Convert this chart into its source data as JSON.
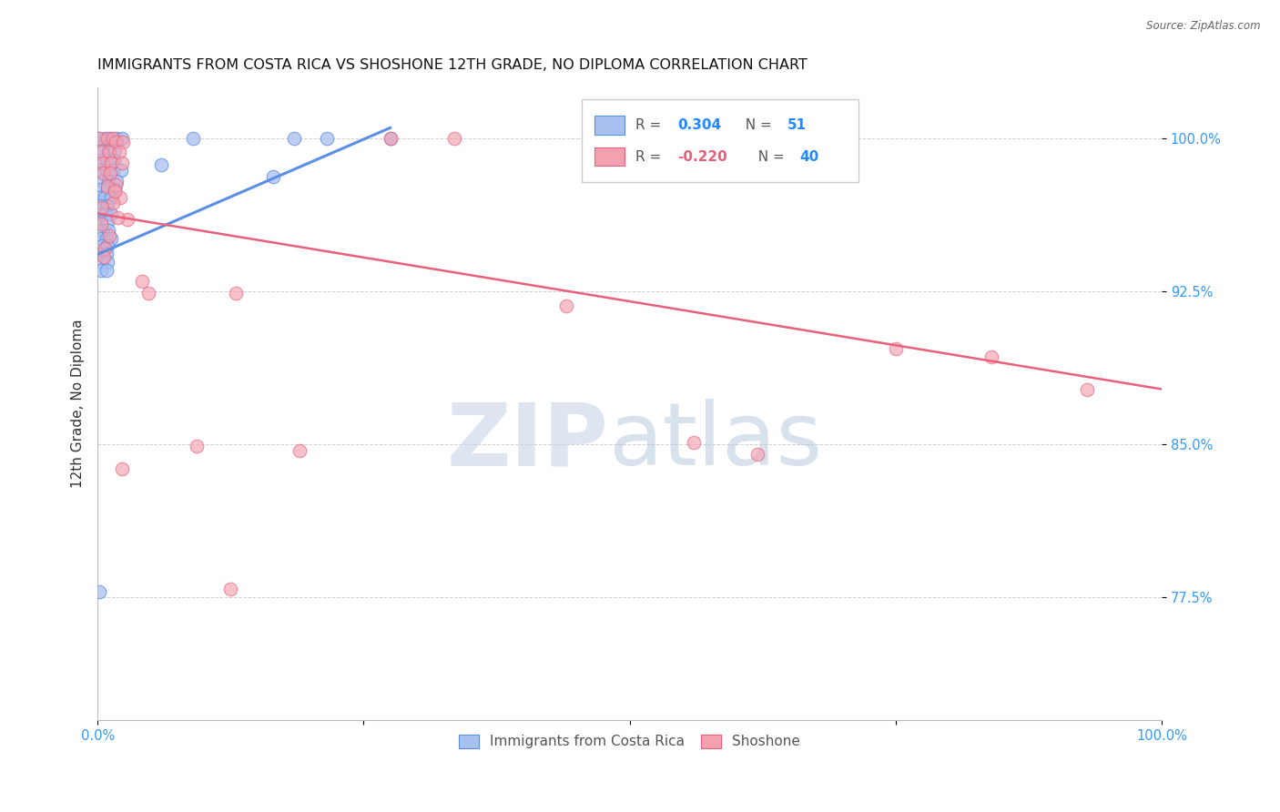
{
  "title": "IMMIGRANTS FROM COSTA RICA VS SHOSHONE 12TH GRADE, NO DIPLOMA CORRELATION CHART",
  "source": "Source: ZipAtlas.com",
  "ylabel": "12th Grade, No Diploma",
  "xlim": [
    0.0,
    1.0
  ],
  "ylim": [
    0.715,
    1.025
  ],
  "yticks": [
    0.775,
    0.85,
    0.925,
    1.0
  ],
  "blue_scatter": [
    [
      0.001,
      1.0
    ],
    [
      0.007,
      1.0
    ],
    [
      0.012,
      1.0
    ],
    [
      0.018,
      1.0
    ],
    [
      0.023,
      1.0
    ],
    [
      0.004,
      0.994
    ],
    [
      0.01,
      0.994
    ],
    [
      0.016,
      0.994
    ],
    [
      0.003,
      0.989
    ],
    [
      0.009,
      0.989
    ],
    [
      0.015,
      0.989
    ],
    [
      0.002,
      0.984
    ],
    [
      0.008,
      0.984
    ],
    [
      0.014,
      0.984
    ],
    [
      0.022,
      0.984
    ],
    [
      0.004,
      0.979
    ],
    [
      0.01,
      0.979
    ],
    [
      0.018,
      0.979
    ],
    [
      0.003,
      0.975
    ],
    [
      0.009,
      0.975
    ],
    [
      0.016,
      0.975
    ],
    [
      0.002,
      0.971
    ],
    [
      0.007,
      0.971
    ],
    [
      0.013,
      0.971
    ],
    [
      0.003,
      0.967
    ],
    [
      0.009,
      0.967
    ],
    [
      0.002,
      0.963
    ],
    [
      0.007,
      0.963
    ],
    [
      0.013,
      0.963
    ],
    [
      0.003,
      0.959
    ],
    [
      0.009,
      0.959
    ],
    [
      0.004,
      0.955
    ],
    [
      0.01,
      0.955
    ],
    [
      0.003,
      0.951
    ],
    [
      0.008,
      0.951
    ],
    [
      0.013,
      0.951
    ],
    [
      0.004,
      0.947
    ],
    [
      0.009,
      0.947
    ],
    [
      0.003,
      0.943
    ],
    [
      0.008,
      0.943
    ],
    [
      0.004,
      0.939
    ],
    [
      0.009,
      0.939
    ],
    [
      0.003,
      0.935
    ],
    [
      0.008,
      0.935
    ],
    [
      0.06,
      0.987
    ],
    [
      0.09,
      1.0
    ],
    [
      0.165,
      0.981
    ],
    [
      0.185,
      1.0
    ],
    [
      0.215,
      1.0
    ],
    [
      0.275,
      1.0
    ],
    [
      0.002,
      0.778
    ]
  ],
  "pink_scatter": [
    [
      0.002,
      1.0
    ],
    [
      0.009,
      1.0
    ],
    [
      0.014,
      1.0
    ],
    [
      0.017,
      0.998
    ],
    [
      0.024,
      0.998
    ],
    [
      0.004,
      0.993
    ],
    [
      0.011,
      0.993
    ],
    [
      0.02,
      0.993
    ],
    [
      0.005,
      0.988
    ],
    [
      0.013,
      0.988
    ],
    [
      0.023,
      0.988
    ],
    [
      0.005,
      0.983
    ],
    [
      0.012,
      0.983
    ],
    [
      0.017,
      0.977
    ],
    [
      0.021,
      0.971
    ],
    [
      0.028,
      0.96
    ],
    [
      0.042,
      0.93
    ],
    [
      0.048,
      0.924
    ],
    [
      0.13,
      0.924
    ],
    [
      0.44,
      0.918
    ],
    [
      0.75,
      0.897
    ],
    [
      0.84,
      0.893
    ],
    [
      0.56,
      0.851
    ],
    [
      0.62,
      0.845
    ],
    [
      0.19,
      0.847
    ],
    [
      0.093,
      0.849
    ],
    [
      0.125,
      0.779
    ],
    [
      0.93,
      0.877
    ],
    [
      0.275,
      1.0
    ],
    [
      0.335,
      1.0
    ],
    [
      0.495,
      1.0
    ],
    [
      0.023,
      0.838
    ],
    [
      0.014,
      0.968
    ],
    [
      0.009,
      0.976
    ],
    [
      0.004,
      0.966
    ],
    [
      0.019,
      0.961
    ],
    [
      0.011,
      0.952
    ],
    [
      0.007,
      0.946
    ],
    [
      0.003,
      0.958
    ],
    [
      0.016,
      0.974
    ],
    [
      0.006,
      0.942
    ]
  ],
  "blue_line_x": [
    0.0,
    0.275
  ],
  "blue_line_y": [
    0.943,
    1.005
  ],
  "pink_line_x": [
    0.0,
    1.0
  ],
  "pink_line_y": [
    0.963,
    0.877
  ],
  "blue_color": "#5b8ee6",
  "pink_color": "#e8607a",
  "blue_fill": "#a8c0f0",
  "pink_fill": "#f4a0b0",
  "grid_color": "#d0d0d0",
  "background_color": "#ffffff",
  "title_fontsize": 11.5,
  "axis_label_fontsize": 11,
  "tick_fontsize": 10.5
}
